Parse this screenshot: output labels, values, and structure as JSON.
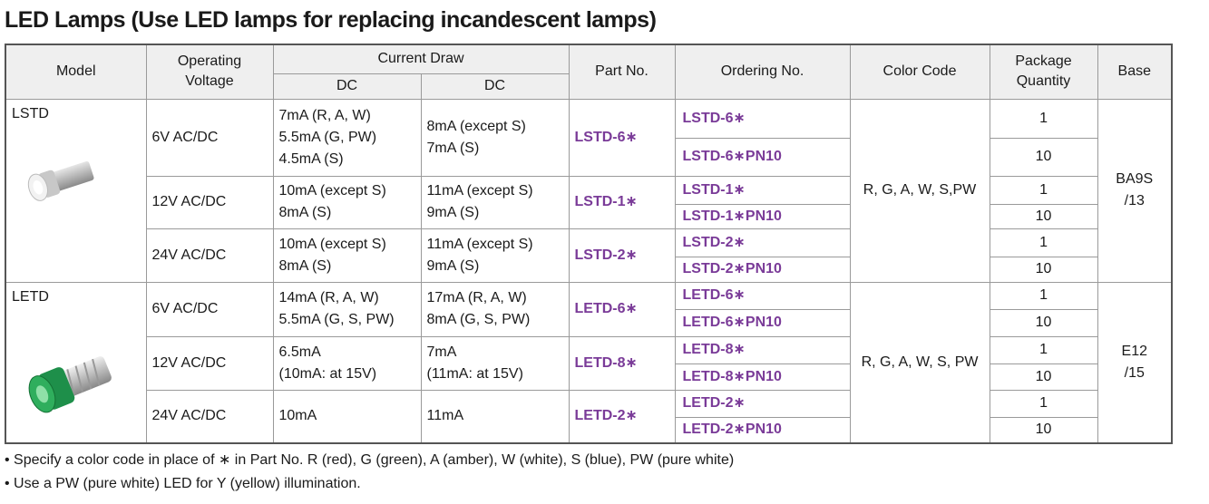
{
  "title": "LED Lamps (Use LED lamps for replacing incandescent lamps)",
  "table": {
    "header": {
      "model": "Model",
      "voltage": [
        "Operating",
        "Voltage"
      ],
      "current": "Current Draw",
      "dc": [
        "DC",
        "DC"
      ],
      "part": "Part No.",
      "order": "Ordering No.",
      "color": "Color Code",
      "qty": [
        "Package",
        "Quantity"
      ],
      "base": "Base"
    },
    "groups": [
      {
        "model": "LSTD",
        "color_code": "R, G, A, W, S,PW",
        "base": [
          "BA9S",
          "/13"
        ],
        "rows": [
          {
            "voltage": "6V AC/DC",
            "dc1": [
              "7mA (R, A, W)",
              "5.5mA (G, PW)",
              "4.5mA (S)"
            ],
            "dc2": [
              "8mA (except S)",
              "7mA (S)"
            ],
            "part": "LSTD-6∗",
            "orders": [
              {
                "no": "LSTD-6∗",
                "qty": "1"
              },
              {
                "no": "LSTD-6∗PN10",
                "qty": "10"
              }
            ]
          },
          {
            "voltage": "12V AC/DC",
            "dc1": [
              "10mA (except S)",
              "8mA (S)"
            ],
            "dc2": [
              "11mA (except S)",
              "9mA (S)"
            ],
            "part": "LSTD-1∗",
            "orders": [
              {
                "no": "LSTD-1∗",
                "qty": "1"
              },
              {
                "no": "LSTD-1∗PN10",
                "qty": "10"
              }
            ]
          },
          {
            "voltage": "24V AC/DC",
            "dc1": [
              "10mA (except S)",
              "8mA (S)"
            ],
            "dc2": [
              "11mA (except S)",
              "9mA (S)"
            ],
            "part": "LSTD-2∗",
            "orders": [
              {
                "no": "LSTD-2∗",
                "qty": "1"
              },
              {
                "no": "LSTD-2∗PN10",
                "qty": "10"
              }
            ]
          }
        ]
      },
      {
        "model": "LETD",
        "color_code": "R, G, A, W, S, PW",
        "base": [
          "E12",
          "/15"
        ],
        "rows": [
          {
            "voltage": "6V AC/DC",
            "dc1": [
              "14mA (R, A, W)",
              "5.5mA (G, S, PW)"
            ],
            "dc2": [
              "17mA (R, A, W)",
              "8mA (G, S, PW)"
            ],
            "part": "LETD-6∗",
            "orders": [
              {
                "no": "LETD-6∗",
                "qty": "1"
              },
              {
                "no": "LETD-6∗PN10",
                "qty": "10"
              }
            ]
          },
          {
            "voltage": "12V AC/DC",
            "dc1": [
              "6.5mA",
              "(10mA: at 15V)"
            ],
            "dc2": [
              "7mA",
              "(11mA: at 15V)"
            ],
            "part": "LETD-8∗",
            "orders": [
              {
                "no": "LETD-8∗",
                "qty": "1"
              },
              {
                "no": "LETD-8∗PN10",
                "qty": "10"
              }
            ]
          },
          {
            "voltage": "24V AC/DC",
            "dc1": [
              "10mA"
            ],
            "dc2": [
              "11mA"
            ],
            "part": "LETD-2∗",
            "orders": [
              {
                "no": "LETD-2∗",
                "qty": "1"
              },
              {
                "no": "LETD-2∗PN10",
                "qty": "10"
              }
            ]
          }
        ]
      }
    ]
  },
  "notes": [
    "• Specify a color code in place of ∗ in Part No. R (red), G (green), A (amber), W (white), S (blue), PW (pure white)",
    "• Use a PW (pure white) LED for Y (yellow) illumination."
  ]
}
